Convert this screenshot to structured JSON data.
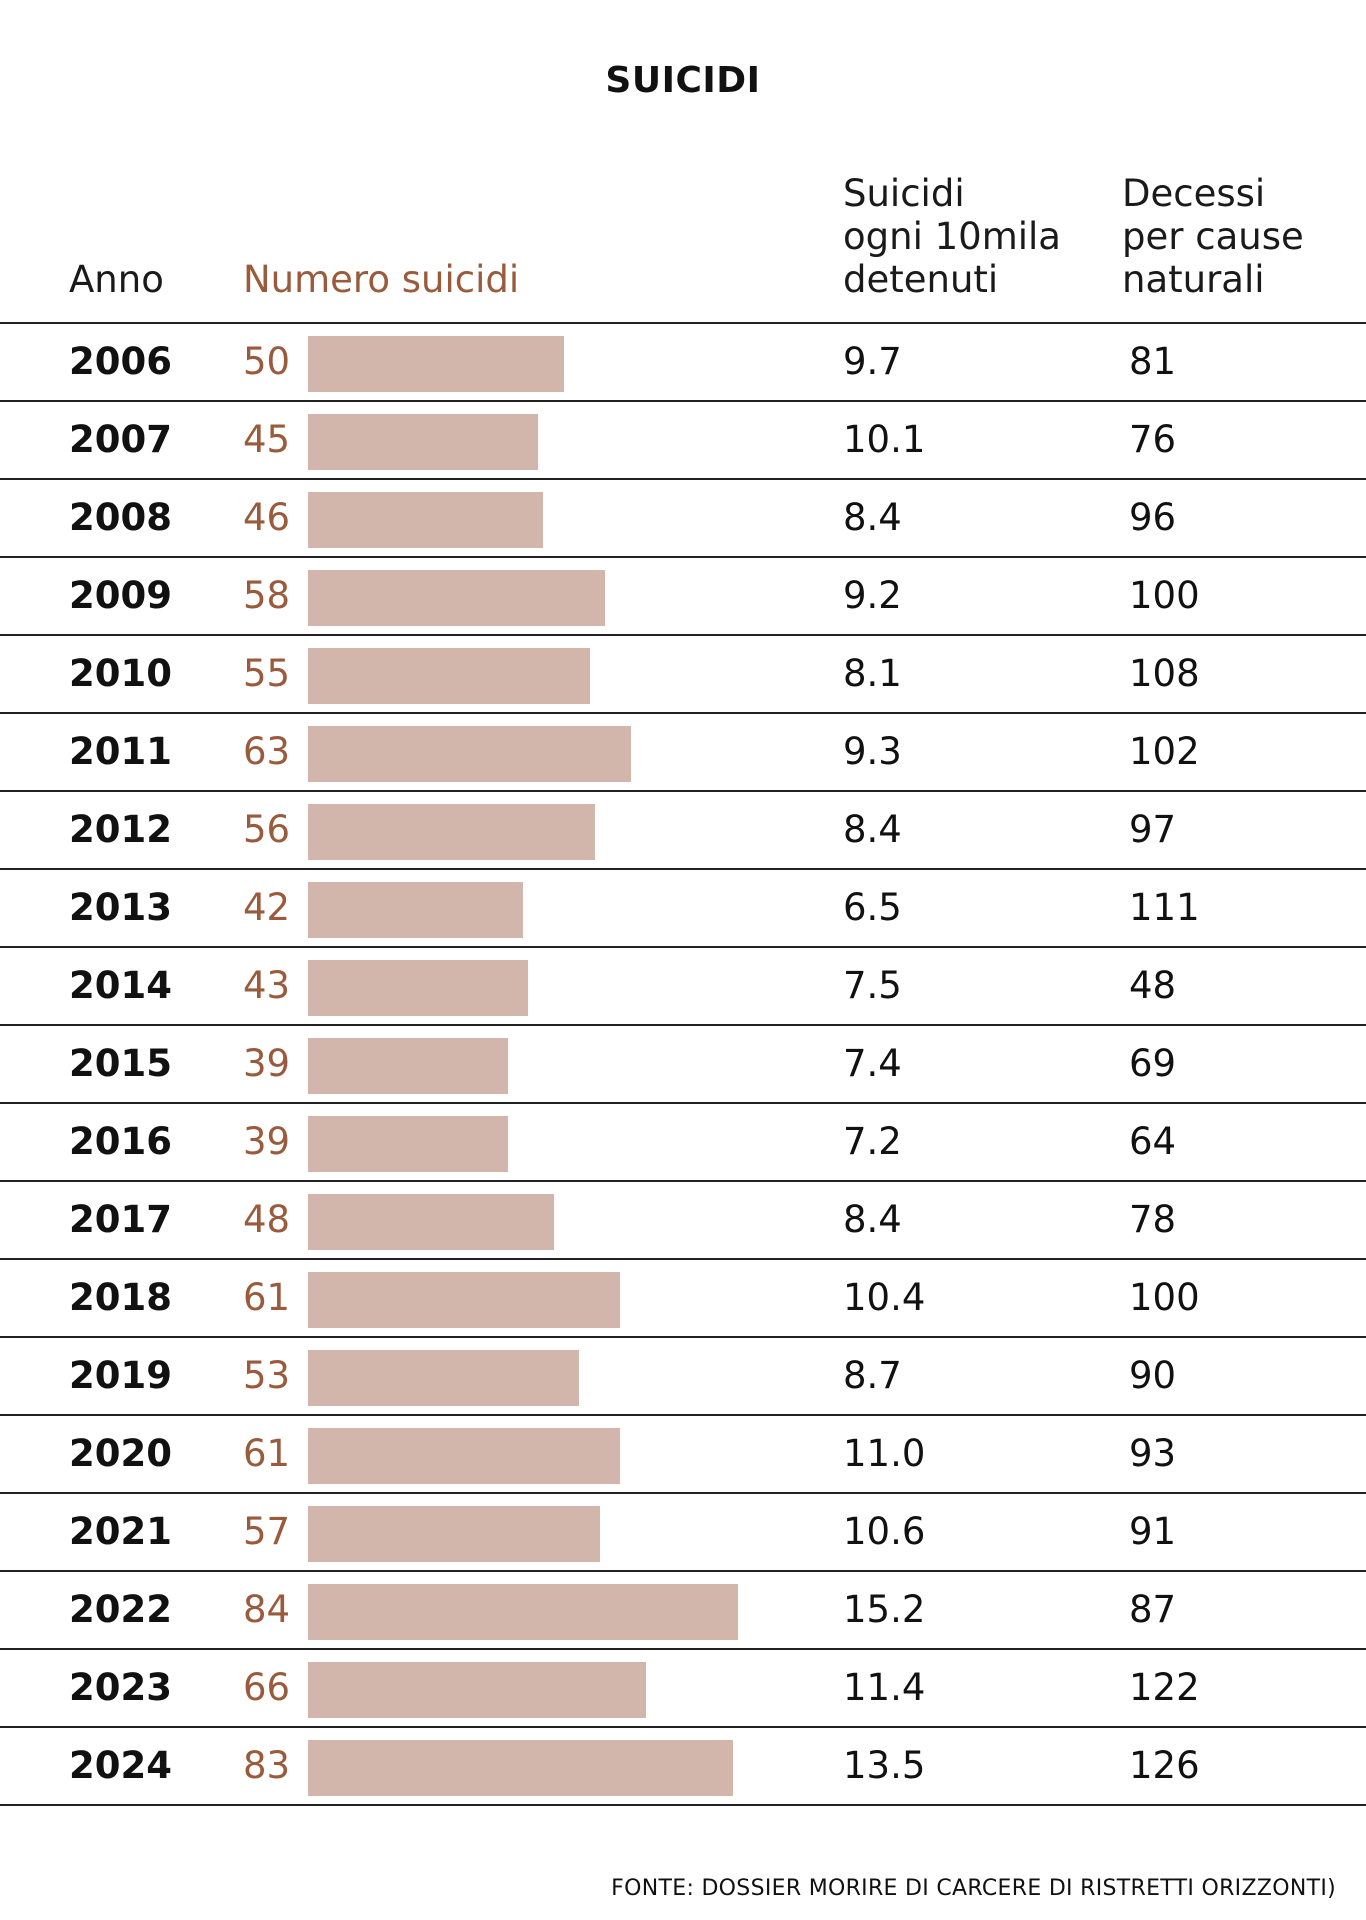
{
  "colors": {
    "accent": "#9a5a3c",
    "bar": "#d2b6ab"
  },
  "chart_data": {
    "type": "table",
    "title": "SUICIDI",
    "columns": {
      "year": "Anno",
      "suicides": "Numero suicidi",
      "rate": "Suicidi\nogni 10mila\ndetenuti",
      "natural": "Decessi\nper cause\nnaturali"
    },
    "bar_max": 84,
    "rows": [
      {
        "year": "2006",
        "suicides": 50,
        "rate": "9.7",
        "natural": "81"
      },
      {
        "year": "2007",
        "suicides": 45,
        "rate": "10.1",
        "natural": "76"
      },
      {
        "year": "2008",
        "suicides": 46,
        "rate": "8.4",
        "natural": "96"
      },
      {
        "year": "2009",
        "suicides": 58,
        "rate": "9.2",
        "natural": "100"
      },
      {
        "year": "2010",
        "suicides": 55,
        "rate": "8.1",
        "natural": "108"
      },
      {
        "year": "2011",
        "suicides": 63,
        "rate": "9.3",
        "natural": "102"
      },
      {
        "year": "2012",
        "suicides": 56,
        "rate": "8.4",
        "natural": "97"
      },
      {
        "year": "2013",
        "suicides": 42,
        "rate": "6.5",
        "natural": "111"
      },
      {
        "year": "2014",
        "suicides": 43,
        "rate": "7.5",
        "natural": "48"
      },
      {
        "year": "2015",
        "suicides": 39,
        "rate": "7.4",
        "natural": "69"
      },
      {
        "year": "2016",
        "suicides": 39,
        "rate": "7.2",
        "natural": "64"
      },
      {
        "year": "2017",
        "suicides": 48,
        "rate": "8.4",
        "natural": "78"
      },
      {
        "year": "2018",
        "suicides": 61,
        "rate": "10.4",
        "natural": "100"
      },
      {
        "year": "2019",
        "suicides": 53,
        "rate": "8.7",
        "natural": "90"
      },
      {
        "year": "2020",
        "suicides": 61,
        "rate": "11.0",
        "natural": "93"
      },
      {
        "year": "2021",
        "suicides": 57,
        "rate": "10.6",
        "natural": "91"
      },
      {
        "year": "2022",
        "suicides": 84,
        "rate": "15.2",
        "natural": "87"
      },
      {
        "year": "2023",
        "suicides": 66,
        "rate": "11.4",
        "natural": "122"
      },
      {
        "year": "2024",
        "suicides": 83,
        "rate": "13.5",
        "natural": "126"
      }
    ],
    "source": "FONTE: DOSSIER MORIRE DI CARCERE DI RISTRETTI ORIZZONTI)"
  }
}
